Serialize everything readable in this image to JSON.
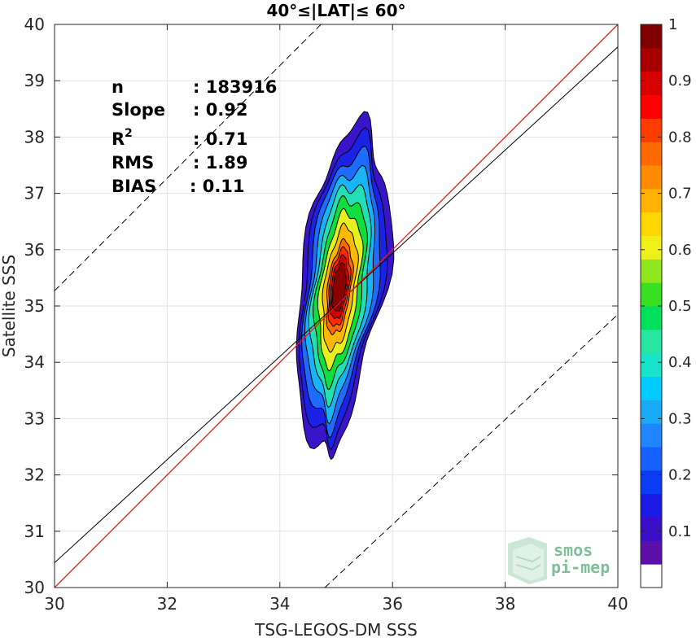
{
  "chart_data": {
    "type": "contour",
    "title": "40°≤|LAT|≤ 60°",
    "xlabel": "TSG-LEGOS-DM SSS",
    "ylabel": "Satellite SSS",
    "xlim": [
      30,
      40
    ],
    "ylim": [
      30,
      40
    ],
    "xticks": [
      "30",
      "32",
      "34",
      "36",
      "38",
      "40"
    ],
    "yticks": [
      "30",
      "31",
      "32",
      "33",
      "34",
      "35",
      "36",
      "37",
      "38",
      "39",
      "40"
    ],
    "grid": true,
    "stats": [
      {
        "label": "n",
        "value": ": 183916"
      },
      {
        "label": "Slope",
        "value": ": 0.92"
      },
      {
        "label": "R",
        "sup": "2",
        "value": ": 0.71"
      },
      {
        "label": "RMS",
        "value": ": 1.89"
      },
      {
        "label": "BIAS",
        "value": ": 0.11"
      }
    ],
    "lines": {
      "identity": {
        "color": "#e41a1c",
        "x": [
          30,
          40
        ],
        "y": [
          30,
          40
        ]
      },
      "regression": {
        "color": "#000000",
        "x": [
          30,
          40
        ],
        "y": [
          30.44,
          39.6
        ]
      },
      "upper_bound": {
        "style": "dashed",
        "x": [
          30,
          40
        ],
        "y": [
          35.27,
          45.27
        ]
      },
      "lower_bound": {
        "style": "dashed",
        "x": [
          34.8,
          40
        ],
        "y": [
          30,
          34.85
        ]
      }
    },
    "density_peak": {
      "x": 35.05,
      "y": 35.3
    },
    "colorbar": {
      "range": [
        0,
        1
      ],
      "ticks": [
        "0.1",
        "0.2",
        "0.3",
        "0.4",
        "0.5",
        "0.6",
        "0.7",
        "0.8",
        "0.9",
        "1"
      ],
      "colors": [
        "#ffffff",
        "#5b0fa8",
        "#3a0dc8",
        "#1b1be6",
        "#0a3cf5",
        "#1560ff",
        "#1f86ff",
        "#18aaf5",
        "#00ccff",
        "#19e3c8",
        "#27e6a0",
        "#00e05a",
        "#38e021",
        "#8ee61c",
        "#f0f019",
        "#ffd700",
        "#ffb300",
        "#ff8c00",
        "#ff6a00",
        "#ff3c00",
        "#ff0000",
        "#d90000",
        "#a80000",
        "#800000"
      ]
    },
    "contour_levels": [
      {
        "level": 0.05,
        "color": "#3a14c8"
      },
      {
        "level": 0.15,
        "color": "#1b22e6"
      },
      {
        "level": 0.25,
        "color": "#1e6cff"
      },
      {
        "level": 0.35,
        "color": "#18b4f5"
      },
      {
        "level": 0.45,
        "color": "#22e0b4"
      },
      {
        "level": 0.55,
        "color": "#10de3c"
      },
      {
        "level": 0.65,
        "color": "#e6f01e"
      },
      {
        "level": 0.75,
        "color": "#ffb800"
      },
      {
        "level": 0.85,
        "color": "#ff6a00"
      },
      {
        "level": 0.9,
        "color": "#ff2a00"
      },
      {
        "level": 0.95,
        "color": "#d40000"
      },
      {
        "level": 1.0,
        "color": "#8a0000"
      }
    ]
  },
  "logo": {
    "line1": "smos",
    "line2": "pi-mep"
  }
}
